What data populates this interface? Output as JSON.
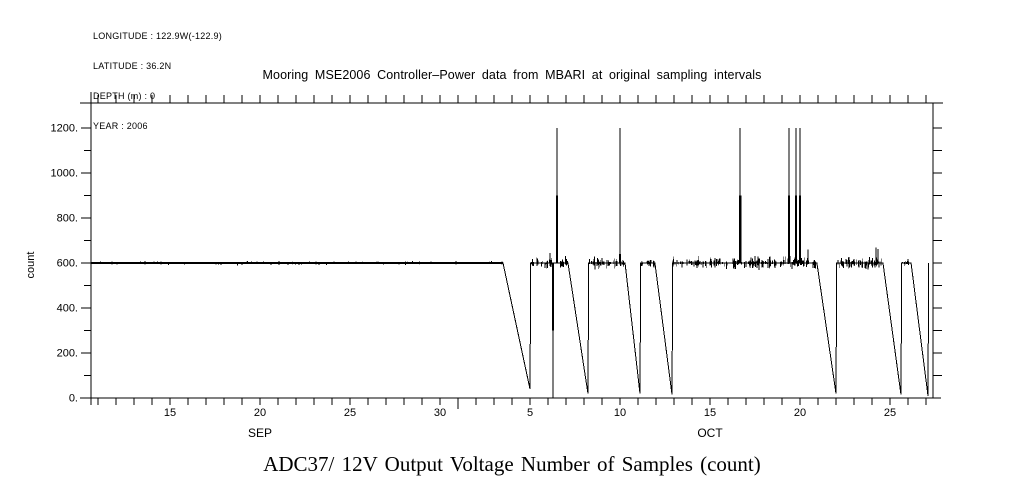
{
  "meta_block": {
    "lines": [
      "LONGITUDE : 122.9W(-122.9)",
      "LATITUDE : 36.2N",
      "DEPTH (m) : 0",
      "YEAR : 2006"
    ]
  },
  "chart_data": {
    "type": "line",
    "title": "Mooring MSE2006 Controller–Power data from MBARI at original sampling intervals",
    "caption": "ADC37/ 12V Output Voltage Number of Samples (count)",
    "ylabel": "count",
    "line_color": "#000000",
    "background": "#ffffff",
    "x_axis": {
      "day_unit": "day-of-month, September days 11-30, October day d = 30+d",
      "domain_day": [
        10.61,
        57.39
      ],
      "minor_tick_step_days": 1,
      "month_boundary_day": 31,
      "labeled_ticks": [
        {
          "day": 15,
          "label": "15"
        },
        {
          "day": 20,
          "label": "20"
        },
        {
          "day": 25,
          "label": "25"
        },
        {
          "day": 30,
          "label": "30"
        },
        {
          "day": 35,
          "label": "5"
        },
        {
          "day": 40,
          "label": "10"
        },
        {
          "day": 45,
          "label": "15"
        },
        {
          "day": 50,
          "label": "20"
        },
        {
          "day": 55,
          "label": "25"
        }
      ],
      "month_labels": [
        {
          "day": 20,
          "label": "SEP"
        },
        {
          "day": 45,
          "label": "OCT"
        }
      ]
    },
    "y_axis": {
      "domain": [
        0,
        1311
      ],
      "minor_tick_step": 100,
      "ticks": [
        {
          "value": 0,
          "label": "0."
        },
        {
          "value": 200,
          "label": "200."
        },
        {
          "value": 400,
          "label": "400."
        },
        {
          "value": 600,
          "label": "600."
        },
        {
          "value": 800,
          "label": "800."
        },
        {
          "value": 1000,
          "label": "1000."
        },
        {
          "value": 1200,
          "label": "1200."
        }
      ]
    },
    "baseline_value": 600,
    "line_points": [
      [
        10.61,
        600
      ],
      [
        33.5,
        600
      ],
      [
        35.0,
        40
      ],
      [
        35.04,
        600
      ],
      [
        37.11,
        600
      ],
      [
        38.22,
        20
      ],
      [
        38.26,
        600
      ],
      [
        40.28,
        600
      ],
      [
        41.11,
        20
      ],
      [
        41.15,
        600
      ],
      [
        41.94,
        600
      ],
      [
        42.89,
        15
      ],
      [
        42.93,
        600
      ],
      [
        50.94,
        600
      ],
      [
        52.0,
        20
      ],
      [
        52.04,
        600
      ],
      [
        54.61,
        600
      ],
      [
        55.61,
        15
      ],
      [
        55.65,
        600
      ],
      [
        56.17,
        600
      ],
      [
        57.11,
        10
      ],
      [
        57.15,
        600
      ]
    ],
    "thick_ranges": [
      [
        10.61,
        33.5
      ]
    ],
    "spikes_up": [
      {
        "day": 36.5,
        "peak": 1200,
        "thick_to": 900
      },
      {
        "day": 40.0,
        "peak": 1200,
        "thick_to": 640
      },
      {
        "day": 46.67,
        "peak": 1200,
        "thick_to": 900
      },
      {
        "day": 49.39,
        "peak": 1200,
        "thick_to": 900
      },
      {
        "day": 49.78,
        "peak": 1200,
        "thick_to": 900
      },
      {
        "day": 50.0,
        "peak": 1200,
        "thick_to": 900
      }
    ],
    "spikes_down": [
      {
        "day": 36.28,
        "bottom": 0,
        "thick_to": 300
      }
    ],
    "minor_spikes": [
      [
        36.1,
        645
      ],
      [
        50.45,
        660
      ],
      [
        54.22,
        668
      ],
      [
        54.33,
        662
      ]
    ],
    "noise_regions": [
      {
        "from": 10.7,
        "to": 33.45,
        "amp": 8,
        "density": 5
      },
      {
        "from": 35.06,
        "to": 36.24,
        "amp": 30,
        "density": 22
      },
      {
        "from": 36.55,
        "to": 37.08,
        "amp": 30,
        "density": 22
      },
      {
        "from": 38.28,
        "to": 40.26,
        "amp": 30,
        "density": 22
      },
      {
        "from": 41.17,
        "to": 41.92,
        "amp": 28,
        "density": 22
      },
      {
        "from": 42.95,
        "to": 46.6,
        "amp": 30,
        "density": 24
      },
      {
        "from": 46.75,
        "to": 50.9,
        "amp": 34,
        "density": 26
      },
      {
        "from": 52.06,
        "to": 54.58,
        "amp": 30,
        "density": 24
      },
      {
        "from": 55.67,
        "to": 56.15,
        "amp": 18,
        "density": 18
      }
    ]
  }
}
